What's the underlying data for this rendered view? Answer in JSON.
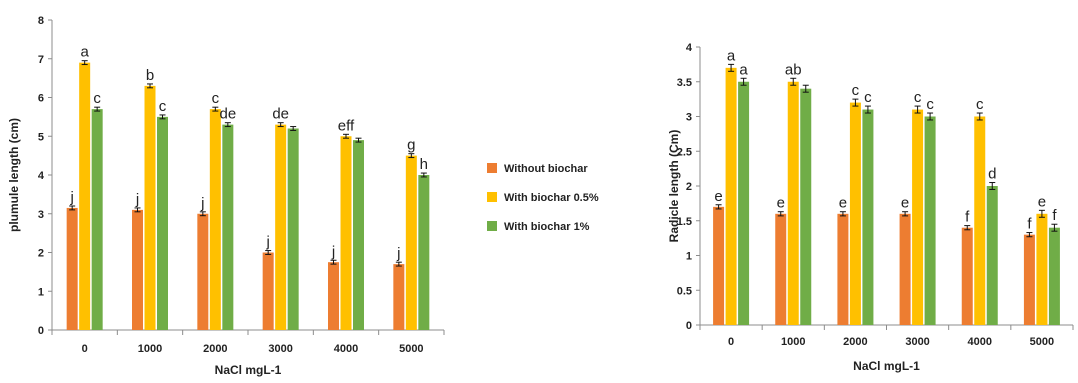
{
  "legend": [
    {
      "label": "Without biochar",
      "color": "#ED7D31"
    },
    {
      "label": "With biochar 0.5%",
      "color": "#FFC000"
    },
    {
      "label": "With biochar 1%",
      "color": "#70AD47"
    }
  ],
  "chart_data": [
    {
      "type": "bar",
      "categories": [
        "0",
        "1000",
        "2000",
        "3000",
        "4000",
        "5000"
      ],
      "xlabel": "NaCl mgL-1",
      "ylabel": "plumule length (cm)",
      "ylim": [
        0,
        8
      ],
      "yticks": [
        0,
        1,
        2,
        3,
        4,
        5,
        6,
        7,
        8
      ],
      "series": [
        {
          "name": "Without biochar",
          "color": "#ED7D31",
          "values": [
            3.15,
            3.1,
            3.0,
            2.0,
            1.75,
            1.7
          ],
          "errors": [
            0.05,
            0.05,
            0.05,
            0.05,
            0.05,
            0.05
          ],
          "labels": [
            "j",
            "j",
            "j",
            "j",
            "j",
            "j"
          ]
        },
        {
          "name": "With biochar 0.5%",
          "color": "#FFC000",
          "values": [
            6.9,
            6.3,
            5.7,
            5.3,
            5.0,
            4.5
          ],
          "errors": [
            0.05,
            0.05,
            0.05,
            0.05,
            0.05,
            0.05
          ],
          "labels": [
            "a",
            "b",
            "c",
            "de",
            "eff",
            "g"
          ]
        },
        {
          "name": "With biochar 1%",
          "color": "#70AD47",
          "values": [
            5.7,
            5.5,
            5.3,
            5.2,
            4.9,
            4.0
          ],
          "errors": [
            0.05,
            0.05,
            0.05,
            0.05,
            0.05,
            0.05
          ],
          "labels": [
            "c",
            "c",
            "de",
            "",
            "",
            "h"
          ]
        }
      ],
      "grid": false,
      "legend_position": "right"
    },
    {
      "type": "bar",
      "categories": [
        "0",
        "1000",
        "2000",
        "3000",
        "4000",
        "5000"
      ],
      "xlabel": "NaCl mgL-1",
      "ylabel": "Radicle length (Cm)",
      "ylim": [
        0,
        4
      ],
      "yticks": [
        0,
        0.5,
        1,
        1.5,
        2,
        2.5,
        3,
        3.5,
        4
      ],
      "series": [
        {
          "name": "Without biochar",
          "color": "#ED7D31",
          "values": [
            1.7,
            1.6,
            1.6,
            1.6,
            1.4,
            1.3
          ],
          "errors": [
            0.03,
            0.03,
            0.03,
            0.03,
            0.03,
            0.03
          ],
          "labels": [
            "e",
            "e",
            "e",
            "e",
            "f",
            "f"
          ]
        },
        {
          "name": "With biochar 0.5%",
          "color": "#FFC000",
          "values": [
            3.7,
            3.5,
            3.2,
            3.1,
            3.0,
            1.6
          ],
          "errors": [
            0.05,
            0.05,
            0.05,
            0.05,
            0.05,
            0.05
          ],
          "labels": [
            "a",
            "ab",
            "c",
            "c",
            "c",
            "e"
          ]
        },
        {
          "name": "With biochar 1%",
          "color": "#70AD47",
          "values": [
            3.5,
            3.4,
            3.1,
            3.0,
            2.0,
            1.4
          ],
          "errors": [
            0.05,
            0.05,
            0.05,
            0.05,
            0.05,
            0.05
          ],
          "labels": [
            "a",
            "",
            "c",
            "c",
            "d",
            "f"
          ]
        }
      ],
      "grid": false,
      "legend_position": "none"
    }
  ]
}
